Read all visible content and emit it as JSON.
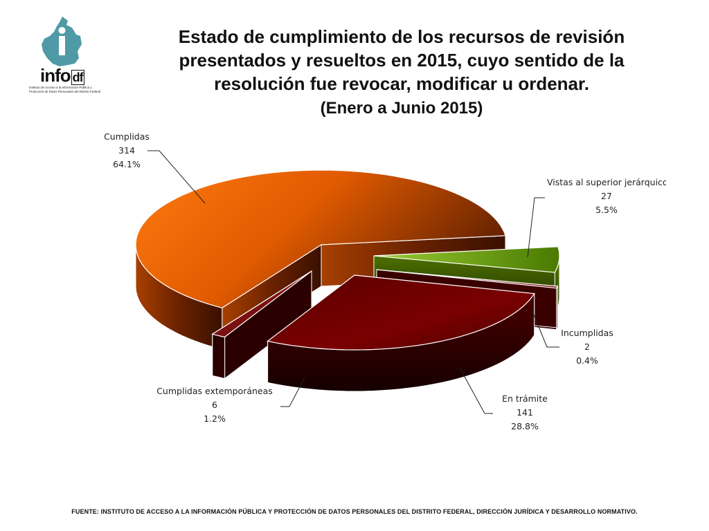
{
  "header": {
    "title_lines": [
      "Estado de cumplimiento de los recursos de revisión",
      "presentados y resueltos en 2015, cuyo sentido de la",
      "resolución fue revocar, modificar u ordenar."
    ],
    "subtitle": "(Enero a Junio 2015)"
  },
  "logo": {
    "word": "infodf",
    "subtitle": "Instituto de Acceso a la Información Pública y Protección de Datos Personales del Distrito Federal"
  },
  "chart_data": {
    "type": "pie",
    "title": "Estado de cumplimiento de los recursos de revisión presentados y resueltos en 2015, cuyo sentido de la resolución fue revocar, modificar u ordenar.",
    "subtitle": "(Enero a Junio 2015)",
    "slices": [
      {
        "label": "Cumplidas",
        "value": 314,
        "percent": "64.1%",
        "color": "#FF6600"
      },
      {
        "label": "Vistas al superior jerárquico",
        "value": 27,
        "percent": "5.5%",
        "color": "#66AA00"
      },
      {
        "label": "Incumplidas",
        "value": 2,
        "percent": "0.4%",
        "color": "#8A1A1A"
      },
      {
        "label": "En trámite",
        "value": 141,
        "percent": "28.8%",
        "color": "#7A0000"
      },
      {
        "label": "Cumplidas extemporáneas",
        "value": 6,
        "percent": "1.2%",
        "color": "#8A1A1A"
      }
    ],
    "style": "3d-exploded",
    "legend": "none"
  },
  "footer": {
    "source": "FUENTE: INSTITUTO DE ACCESO A LA INFORMACIÓN PÚBLICA Y PROTECCIÓN DE DATOS PERSONALES DEL DISTRITO FEDERAL, DIRECCIÓN JURÍDICA Y DESARROLLO NORMATIVO."
  }
}
